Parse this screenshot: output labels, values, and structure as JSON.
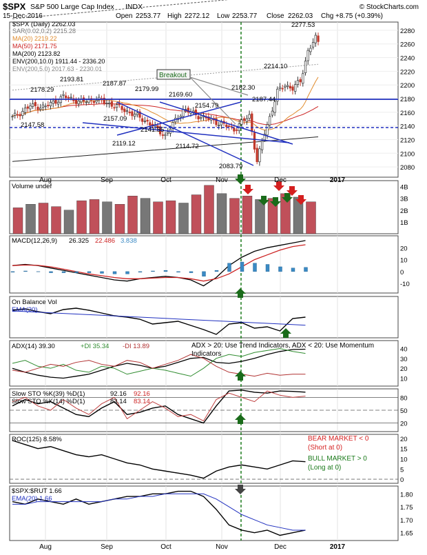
{
  "header": {
    "symbol": "$SPX",
    "name": "S&P 500 Large Cap Index",
    "exchange": "INDX",
    "date": "15-Dec-2016",
    "open_label": "Open",
    "open": "2253.77",
    "high_label": "High",
    "high": "2272.12",
    "low_label": "Low",
    "low": "2253.77",
    "close_label": "Close",
    "close": "2262.03",
    "chg_label": "Chg",
    "chg": "+8.75 (+0.39%)",
    "brand": "© StockCharts.com"
  },
  "colors": {
    "up": "#2f7d32",
    "down": "#c0392b",
    "trend": "#1f2fbf",
    "signal_green": "#1a6b1a",
    "signal_red": "#d41f1f",
    "dashed_line": "#1a7a1a",
    "bear_text": "#d62222",
    "bull_text": "#1a7a1a"
  },
  "x_axis": {
    "labels": [
      "Aug",
      "Sep",
      "Oct",
      "Nov",
      "Dec",
      "2017"
    ]
  },
  "price_panel": {
    "legend": [
      {
        "text": "$SPX (Daily) 2262.03",
        "color": "#000000"
      },
      {
        "text": "SAR(0.02,0.2) 2215.28",
        "color": "#777777"
      },
      {
        "text": "MA(20) 2219.22",
        "color": "#e08a2a"
      },
      {
        "text": "MA(50) 2171.75",
        "color": "#cc2222"
      },
      {
        "text": "MA(200) 2123.82",
        "color": "#000000"
      },
      {
        "text": "ENV(200,10.0) 1911.44 - 2336.20",
        "color": "#000000"
      },
      {
        "text": "ENV(200,5.0) 2017.63 - 2230.01",
        "color": "#888888"
      }
    ],
    "price_labels": [
      "2277.53",
      "2214.10",
      "2182.30",
      "2187.44",
      "2193.81",
      "2187.87",
      "2178.29",
      "2179.99",
      "2169.60",
      "2157.09",
      "2154.79",
      "2147.58",
      "2141.55",
      "2119.12",
      "2114.72",
      "2083.79"
    ],
    "breakout_label": "Breakout"
  },
  "volume_panel": {
    "title": "Volume undef"
  },
  "macd_panel": {
    "name": "MACD(12,26,9)",
    "v1": "26.325",
    "v2": "22.486",
    "v3": "3.838"
  },
  "obv_panel": {
    "name": "On Balance Vol",
    "ema": "EMA(20)"
  },
  "adx_panel": {
    "name": "ADX(14) 39.30",
    "plus_di": "+DI 35.34",
    "minus_di": "-DI 13.89",
    "note": "ADX > 20: Use Trend Indicators, ADX < 20: Use Momentum Indicators"
  },
  "sto_panel": {
    "line1_name": "Slow STO %K(39) %D(1)",
    "line1_k": "92.16",
    "line1_d": "92.16",
    "line2_name": "Slow STO %K(14) %D(1)",
    "line2_k": "83.14",
    "line2_d": "83.14"
  },
  "roc_panel": {
    "name": "ROC(125) 8.58%",
    "bear_line1": "BEAR MARKET < 0",
    "bear_line2": "(Short at 0)",
    "bull_line1": "BULL MARKET > 0",
    "bull_line2": "(Long at 0)"
  },
  "ratio_panel": {
    "name": "$SPX:$RUT 1.66",
    "ema": "EMA(20) 1.66"
  },
  "chart_data": {
    "type": "line",
    "title": "$SPX S&P 500 Large Cap Index INDX",
    "panels": [
      {
        "name": "Price",
        "y_ticks": [
          2080,
          2100,
          2120,
          2140,
          2160,
          2180,
          2200,
          2220,
          2240,
          2260,
          2280
        ],
        "ylim": [
          2065,
          2292
        ],
        "series": [
          {
            "name": "$SPX (Daily)",
            "x": [
              0,
              7,
              13,
              20,
              27,
              33,
              40,
              47,
              53,
              60,
              67,
              73,
              80,
              87,
              93,
              96,
              99,
              102,
              104,
              107,
              110,
              113,
              116,
              119,
              120
            ],
            "values": [
              2152,
              2169,
              2168,
              2183,
              2175,
              2179,
              2170,
              2158,
              2146,
              2126,
              2164,
              2155,
              2146,
              2135,
              2155,
              2088,
              2130,
              2165,
              2190,
              2200,
              2195,
              2205,
              2250,
              2268,
              2262
            ]
          }
        ]
      },
      {
        "name": "Volume",
        "y_ticks": [
          "1B",
          "2B",
          "3B",
          "4B"
        ],
        "ylim": [
          0,
          4.5
        ],
        "values": [
          2.2,
          2.5,
          2.6,
          2.3,
          2.0,
          2.8,
          2.9,
          2.7,
          2.5,
          3.2,
          3.0,
          2.7,
          2.8,
          2.6,
          3.3,
          4.1,
          3.4,
          3.0,
          3.2,
          2.9,
          3.0,
          3.4,
          3.1,
          2.7
        ]
      },
      {
        "name": "MACD(12,26,9)",
        "y_ticks": [
          -10,
          0,
          10,
          20
        ],
        "ylim": [
          -18,
          30
        ],
        "series": [
          {
            "name": "MACD",
            "values": [
              5,
              6,
              5,
              3,
              1,
              -1,
              -3,
              -5,
              -7,
              -8,
              -6,
              -5,
              -4,
              -5,
              -7,
              -12,
              -5,
              5,
              12,
              17,
              20,
              22,
              24,
              26
            ]
          },
          {
            "name": "Signal",
            "values": [
              5,
              5.5,
              5.2,
              4,
              2,
              0,
              -2,
              -3.5,
              -5,
              -6,
              -6,
              -5.5,
              -5,
              -5,
              -6,
              -8,
              -6,
              -2,
              4,
              10,
              14,
              18,
              21,
              22.5
            ]
          }
        ]
      },
      {
        "name": "ADX(14)",
        "y_ticks": [
          10,
          20,
          30,
          40
        ],
        "ylim": [
          2,
          48
        ],
        "series": [
          {
            "name": "ADX",
            "values": [
              20,
              16,
              13,
              11,
              10,
              12,
              14,
              18,
              22,
              25,
              23,
              20,
              22,
              26,
              30,
              31,
              26,
              25,
              27,
              30,
              34,
              37,
              39,
              39.3
            ]
          }
        ]
      },
      {
        "name": "Slow STO",
        "y_ticks": [
          20,
          50,
          80
        ],
        "ylim": [
          0,
          100
        ],
        "series": [
          {
            "name": "%K(39)",
            "values": [
              60,
              75,
              65,
              70,
              55,
              40,
              35,
              55,
              70,
              40,
              45,
              55,
              60,
              40,
              30,
              20,
              60,
              95,
              97,
              92,
              90,
              95,
              94,
              92.16
            ]
          }
        ]
      },
      {
        "name": "ROC(125)",
        "y_ticks": [
          0,
          5,
          10,
          15,
          20
        ],
        "ylim": [
          -2,
          22
        ],
        "series": [
          {
            "name": "ROC(125)",
            "values": [
              19,
              17,
              15,
              16,
              14,
              12,
              11,
              12,
              10,
              8,
              7,
              5,
              4,
              3,
              2,
              0.5,
              4,
              6,
              7,
              6,
              5,
              7,
              9,
              8.58
            ]
          }
        ]
      },
      {
        "name": "$SPX:$RUT",
        "y_ticks": [
          1.65,
          1.7,
          1.75,
          1.8
        ],
        "ylim": [
          1.62,
          1.83
        ],
        "series": [
          {
            "name": "$SPX:$RUT",
            "values": [
              1.77,
              1.76,
              1.78,
              1.77,
              1.76,
              1.78,
              1.76,
              1.77,
              1.78,
              1.79,
              1.79,
              1.8,
              1.8,
              1.81,
              1.81,
              1.79,
              1.74,
              1.68,
              1.66,
              1.65,
              1.66,
              1.64,
              1.65,
              1.66
            ]
          },
          {
            "name": "EMA(20)",
            "values": [
              1.76,
              1.76,
              1.77,
              1.77,
              1.77,
              1.77,
              1.77,
              1.77,
              1.78,
              1.78,
              1.79,
              1.79,
              1.8,
              1.8,
              1.8,
              1.8,
              1.78,
              1.75,
              1.72,
              1.7,
              1.68,
              1.67,
              1.66,
              1.66
            ]
          }
        ]
      }
    ]
  }
}
